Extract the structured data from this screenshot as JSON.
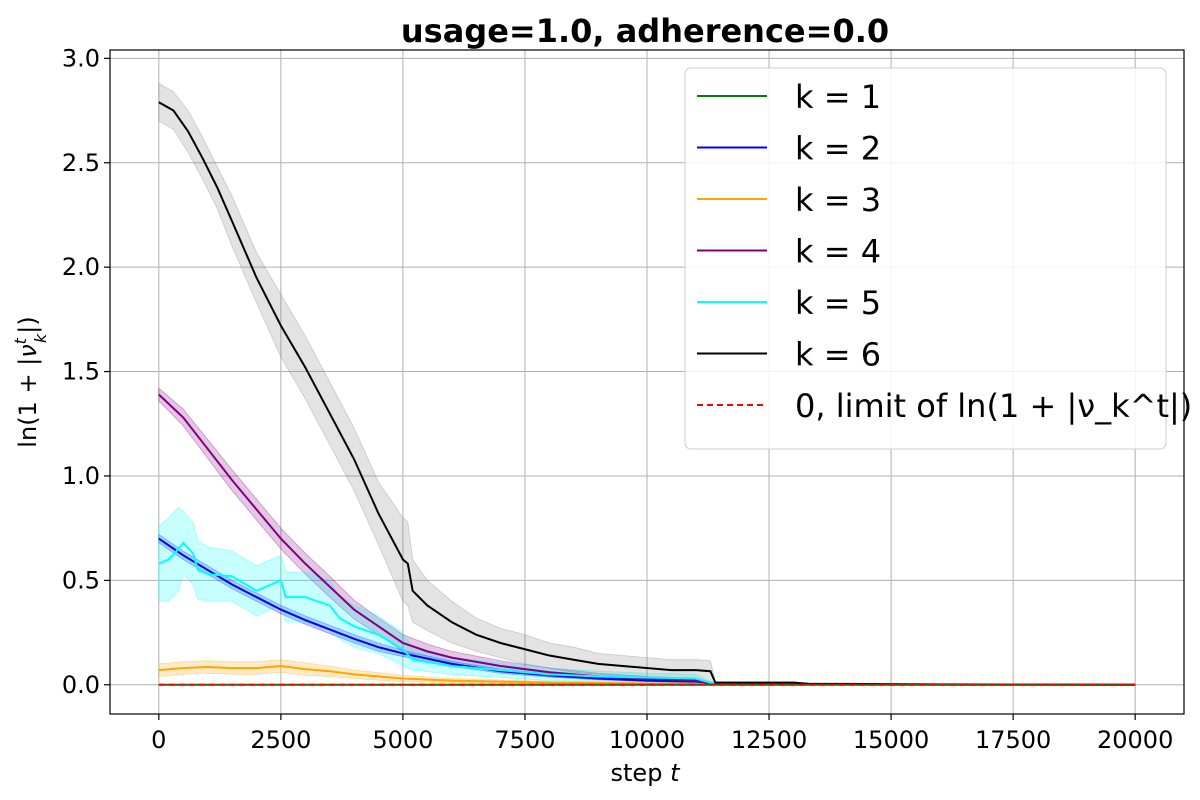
{
  "chart_data": {
    "type": "line",
    "title": "usage=1.0, adherence=0.0",
    "xlabel": "step t",
    "ylabel": "ln(1 + |ν_k^t|)",
    "xlim": [
      -1000,
      21000
    ],
    "ylim": [
      -0.14,
      3.04
    ],
    "xticks": [
      0,
      2500,
      5000,
      7500,
      10000,
      12500,
      15000,
      17500,
      20000
    ],
    "xtick_labels": [
      "0",
      "2500",
      "5000",
      "7500",
      "10000",
      "12500",
      "15000",
      "17500",
      "20000"
    ],
    "yticks": [
      0.0,
      0.5,
      1.0,
      1.5,
      2.0,
      2.5,
      3.0
    ],
    "ytick_labels": [
      "0.0",
      "0.5",
      "1.0",
      "1.5",
      "2.0",
      "2.5",
      "3.0"
    ],
    "grid": true,
    "legend_position": "top-right",
    "series": [
      {
        "name": "k = 1",
        "color": "#008000",
        "x": [
          0,
          20000
        ],
        "y": [
          0.0,
          0.0
        ]
      },
      {
        "name": "k = 2",
        "color": "#0000ff",
        "band_color": "#0000ff",
        "x": [
          0,
          500,
          1000,
          1500,
          2000,
          2500,
          3000,
          3500,
          4000,
          4500,
          5000,
          6000,
          7000,
          8000,
          9000,
          10000,
          11000,
          11300,
          12000,
          14000,
          16000,
          18000,
          20000
        ],
        "y": [
          0.7,
          0.62,
          0.55,
          0.48,
          0.42,
          0.36,
          0.31,
          0.265,
          0.22,
          0.18,
          0.15,
          0.1,
          0.065,
          0.045,
          0.03,
          0.02,
          0.015,
          0.005,
          0.003,
          0.002,
          0.001,
          0.0005,
          0.0
        ],
        "band": [
          0.02,
          0.02,
          0.02,
          0.02,
          0.02,
          0.02,
          0.02,
          0.02,
          0.02,
          0.02,
          0.015,
          0.012,
          0.01,
          0.008,
          0.006,
          0.005,
          0.004,
          0.002,
          0.001,
          0.001,
          0.0,
          0.0,
          0.0
        ]
      },
      {
        "name": "k = 3",
        "color": "#ffa500",
        "band_color": "#ffa500",
        "x": [
          0,
          500,
          1000,
          1500,
          2000,
          2500,
          3000,
          3500,
          4000,
          4500,
          5000,
          6000,
          7000,
          8000,
          9000,
          10000,
          11000,
          11300,
          12000,
          14000,
          16000,
          18000,
          20000
        ],
        "y": [
          0.07,
          0.08,
          0.085,
          0.08,
          0.08,
          0.09,
          0.075,
          0.065,
          0.05,
          0.04,
          0.03,
          0.02,
          0.015,
          0.01,
          0.008,
          0.006,
          0.005,
          0.002,
          0.001,
          0.001,
          0.0,
          0.0,
          0.0
        ],
        "band": [
          0.03,
          0.03,
          0.03,
          0.03,
          0.03,
          0.03,
          0.03,
          0.025,
          0.02,
          0.018,
          0.015,
          0.01,
          0.008,
          0.006,
          0.005,
          0.004,
          0.003,
          0.001,
          0.0,
          0.0,
          0.0,
          0.0,
          0.0
        ]
      },
      {
        "name": "k = 4",
        "color": "#800080",
        "band_color": "#800080",
        "x": [
          0,
          500,
          1000,
          1500,
          2000,
          2500,
          3000,
          3500,
          4000,
          4500,
          5000,
          5500,
          6000,
          7000,
          8000,
          9000,
          10000,
          11000,
          11300,
          12000,
          14000,
          16000,
          18000,
          20000
        ],
        "y": [
          1.39,
          1.28,
          1.13,
          0.98,
          0.84,
          0.7,
          0.58,
          0.47,
          0.36,
          0.28,
          0.2,
          0.16,
          0.13,
          0.09,
          0.06,
          0.04,
          0.03,
          0.02,
          0.005,
          0.003,
          0.002,
          0.001,
          0.0,
          0.0
        ],
        "band": [
          0.03,
          0.04,
          0.045,
          0.05,
          0.05,
          0.05,
          0.05,
          0.05,
          0.045,
          0.04,
          0.04,
          0.035,
          0.03,
          0.025,
          0.02,
          0.015,
          0.01,
          0.008,
          0.002,
          0.001,
          0.001,
          0.0,
          0.0,
          0.0
        ]
      },
      {
        "name": "k = 5",
        "color": "#00ffff",
        "band_color": "#00ffff",
        "x": [
          0,
          200,
          400,
          500,
          700,
          800,
          1000,
          1500,
          2000,
          2500,
          2600,
          3000,
          3500,
          3700,
          4000,
          4500,
          5000,
          5200,
          6000,
          7000,
          8000,
          9000,
          10000,
          11000,
          11300,
          12000,
          14000,
          16000,
          18000,
          20000
        ],
        "y": [
          0.58,
          0.6,
          0.65,
          0.68,
          0.63,
          0.55,
          0.53,
          0.52,
          0.45,
          0.5,
          0.42,
          0.42,
          0.38,
          0.32,
          0.28,
          0.24,
          0.17,
          0.12,
          0.09,
          0.07,
          0.05,
          0.04,
          0.035,
          0.03,
          0.01,
          0.006,
          0.003,
          0.001,
          0.0,
          0.0
        ],
        "band": [
          0.18,
          0.2,
          0.2,
          0.15,
          0.15,
          0.14,
          0.13,
          0.12,
          0.12,
          0.12,
          0.12,
          0.12,
          0.12,
          0.1,
          0.1,
          0.09,
          0.08,
          0.05,
          0.04,
          0.035,
          0.03,
          0.025,
          0.02,
          0.02,
          0.005,
          0.003,
          0.001,
          0.0,
          0.0,
          0.0
        ]
      },
      {
        "name": "k = 6",
        "color": "#000000",
        "band_color": "#808080",
        "x": [
          0,
          300,
          600,
          900,
          1200,
          1500,
          2000,
          2500,
          3000,
          3500,
          4000,
          4500,
          5000,
          5100,
          5200,
          5500,
          6000,
          6500,
          7000,
          7500,
          8000,
          8500,
          9000,
          9500,
          10000,
          10500,
          11000,
          11300,
          11400,
          12000,
          13000,
          13300,
          14000,
          16000,
          18000,
          20000
        ],
        "y": [
          2.79,
          2.75,
          2.65,
          2.52,
          2.38,
          2.22,
          1.95,
          1.72,
          1.52,
          1.3,
          1.08,
          0.82,
          0.6,
          0.58,
          0.45,
          0.38,
          0.3,
          0.24,
          0.2,
          0.17,
          0.14,
          0.12,
          0.1,
          0.09,
          0.08,
          0.07,
          0.07,
          0.065,
          0.01,
          0.01,
          0.01,
          0.005,
          0.004,
          0.002,
          0.001,
          0.0
        ],
        "band": [
          0.09,
          0.09,
          0.1,
          0.1,
          0.1,
          0.12,
          0.12,
          0.15,
          0.15,
          0.15,
          0.15,
          0.15,
          0.2,
          0.2,
          0.15,
          0.12,
          0.1,
          0.08,
          0.07,
          0.07,
          0.06,
          0.06,
          0.05,
          0.05,
          0.05,
          0.05,
          0.05,
          0.05,
          0.005,
          0.004,
          0.004,
          0.002,
          0.001,
          0.0,
          0.0,
          0.0
        ]
      },
      {
        "name": "0, limit of ln(1 + |ν_k^t|)",
        "color": "#ff0000",
        "dashed": true,
        "x": [
          0,
          20000
        ],
        "y": [
          0.0,
          0.0
        ]
      }
    ]
  }
}
